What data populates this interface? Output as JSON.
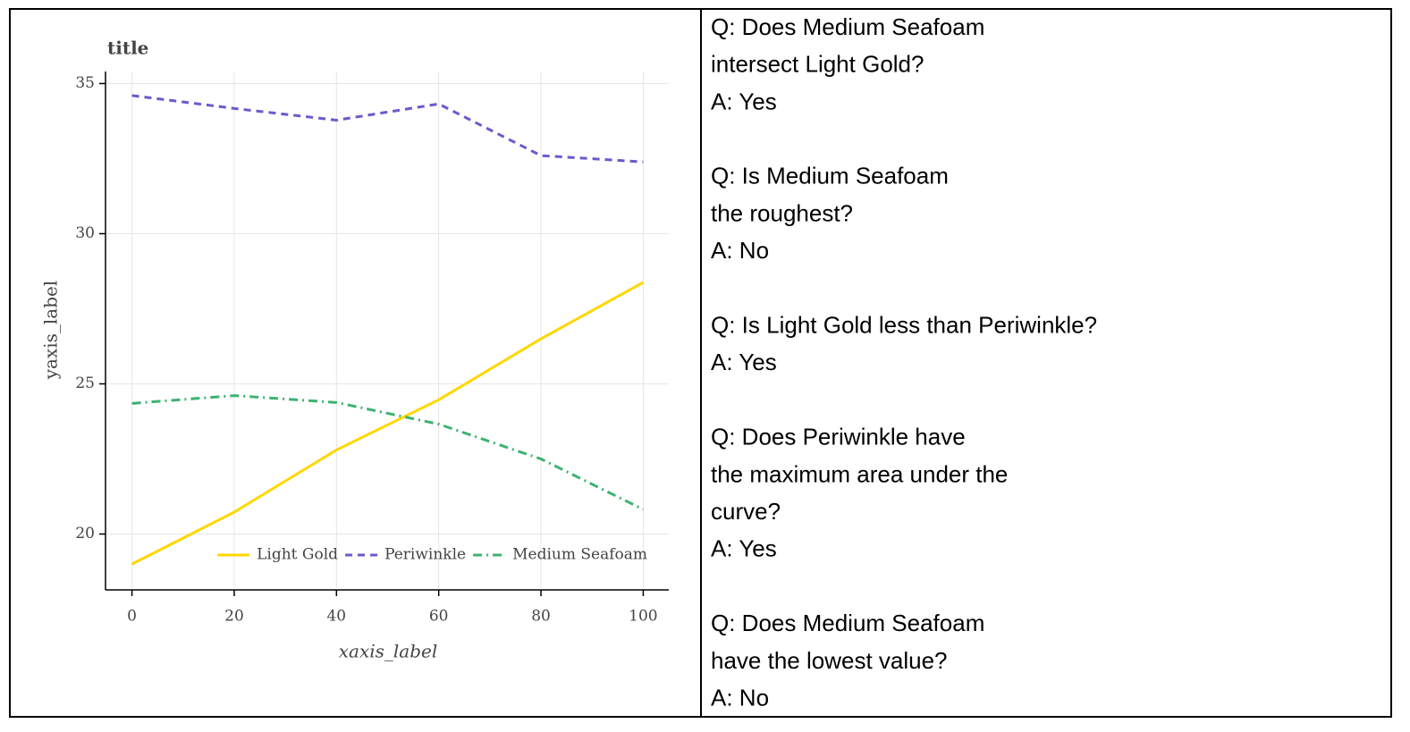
{
  "chart_data": {
    "type": "line",
    "title": "title",
    "x_label": "xaxis_label",
    "y_label": "yaxis_label",
    "x": [
      0,
      20,
      40,
      60,
      80,
      100
    ],
    "series": [
      {
        "name": "Light Gold",
        "color": "#ffd700",
        "dash": "solid",
        "values": [
          19.0,
          20.73,
          22.8,
          24.47,
          26.5,
          28.38
        ]
      },
      {
        "name": "Periwinkle",
        "color": "#6a5acd",
        "dash": "dashed",
        "values": [
          34.6,
          34.17,
          33.78,
          34.32,
          32.6,
          32.39
        ]
      },
      {
        "name": "Medium Seafoam",
        "color": "#3cb371",
        "dash": "dashdot",
        "values": [
          24.35,
          24.61,
          24.38,
          23.66,
          22.5,
          20.82
        ]
      }
    ],
    "xlim": [
      -5,
      105
    ],
    "ylim": [
      18.2,
      35.4
    ],
    "xticks": [
      0,
      20,
      40,
      60,
      80,
      100
    ],
    "yticks": [
      20,
      25,
      30,
      35
    ],
    "grid": true,
    "legend_loc": "bottom_right"
  },
  "qa": [
    {
      "question": [
        "Q: Does Medium Seafoam",
        "intersect Light Gold?"
      ],
      "answer": "A: Yes"
    },
    {
      "question": [
        "Q: Is Medium Seafoam",
        "the roughest?"
      ],
      "answer": "A: No"
    },
    {
      "question": [
        "Q: Is Light Gold less than Periwinkle?"
      ],
      "answer": "A: Yes"
    },
    {
      "question": [
        "Q: Does Periwinkle have",
        "the maximum area under the",
        "curve?"
      ],
      "answer": "A: Yes"
    },
    {
      "question": [
        "Q: Does Medium Seafoam",
        "have the lowest value?"
      ],
      "answer": "A: No"
    }
  ]
}
